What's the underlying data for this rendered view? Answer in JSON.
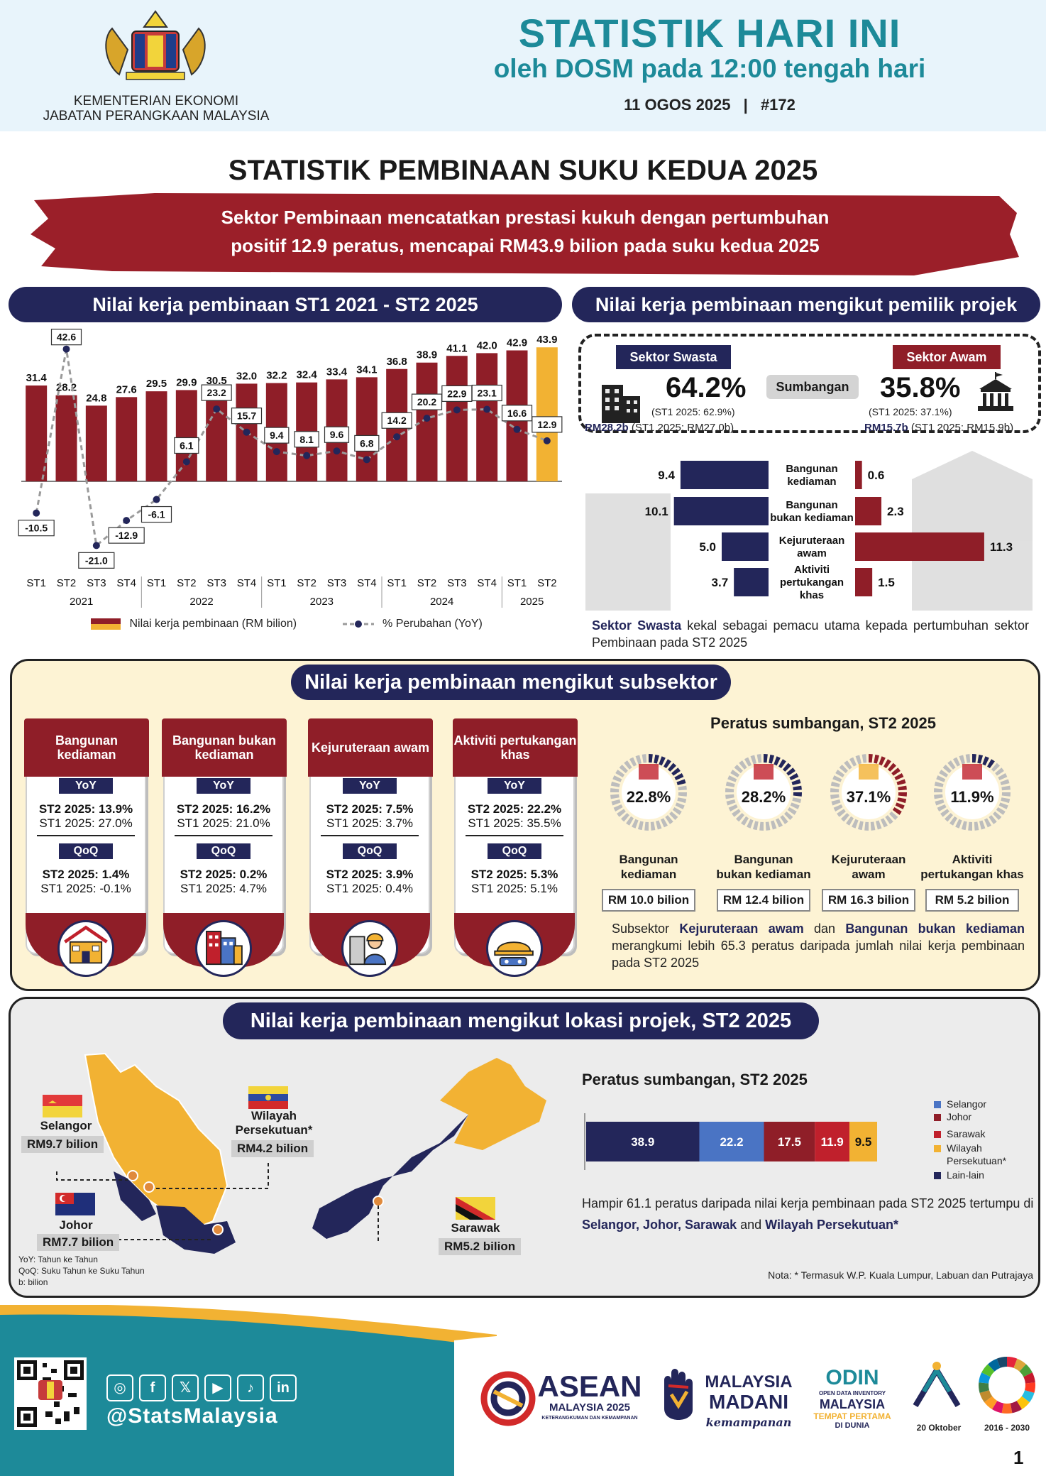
{
  "header": {
    "ministry_line1": "KEMENTERIAN EKONOMI",
    "ministry_line2": "JABATAN PERANGKAAN MALAYSIA",
    "title": "STATISTIK HARI INI",
    "subtitle": "oleh DOSM pada 12:00 tengah hari",
    "date": "11 OGOS 2025",
    "issue": "#172",
    "separator": "|"
  },
  "main_title": "STATISTIK PEMBINAAN SUKU KEDUA 2025",
  "banner": {
    "line1": "Sektor Pembinaan mencatatkan prestasi kukuh dengan pertumbuhan",
    "line2": "positif 12.9 peratus, mencapai RM43.9 bilion pada suku kedua 2025"
  },
  "section1": {
    "title": "Nilai kerja pembinaan ST1 2021 - ST2 2025"
  },
  "section2": {
    "title": "Nilai kerja pembinaan mengikut pemilik projek",
    "swasta": {
      "label": "Sektor Swasta",
      "pct": "64.2%",
      "prev": "(ST1 2025: 62.9%)",
      "rm": "RM28.2b",
      "rm_prev": "(ST1 2025: RM27.0b)"
    },
    "awam": {
      "label": "Sektor Awam",
      "pct": "35.8%",
      "prev": "(ST1 2025: 37.1%)",
      "rm": "RM15.7b",
      "rm_prev": "(ST1 2025: RM15.9b)"
    },
    "sumbangan": "Sumbangan",
    "note_bold": "Sektor Swasta",
    "note_rest": " kekal sebagai pemacu utama kepada pertumbuhan sektor Pembinaan pada ST2 2025"
  },
  "section3": {
    "title": "Nilai kerja pembinaan mengikut subsektor",
    "yoy_label": "YoY",
    "qoq_label": "QoQ",
    "cards": [
      {
        "name": "Bangunan kediaman",
        "yoy_now": "ST2 2025: 13.9%",
        "yoy_prev": "ST1 2025: 27.0%",
        "qoq_now": "ST2 2025: 1.4%",
        "qoq_prev": "ST1 2025: -0.1%",
        "icon": "house-icon"
      },
      {
        "name": "Bangunan bukan kediaman",
        "yoy_now": "ST2 2025: 16.2%",
        "yoy_prev": "ST1 2025: 21.0%",
        "qoq_now": "ST2 2025: 0.2%",
        "qoq_prev": "ST1 2025: 4.7%",
        "icon": "office-building-icon"
      },
      {
        "name": "Kejuruteraan awam",
        "yoy_now": "ST2 2025: 7.5%",
        "yoy_prev": "ST1 2025: 3.7%",
        "qoq_now": "ST2 2025: 3.9%",
        "qoq_prev": "ST1 2025: 0.4%",
        "icon": "engineer-icon"
      },
      {
        "name": "Aktiviti pertukangan khas",
        "yoy_now": "ST2 2025: 22.2%",
        "yoy_prev": "ST1 2025: 35.5%",
        "qoq_now": "ST2 2025: 5.3%",
        "qoq_prev": "ST1 2025: 5.1%",
        "icon": "tools-icon"
      }
    ],
    "donut_title": "Peratus sumbangan, ST2 2025",
    "donuts": [
      {
        "pct": "22.8%",
        "label1": "Bangunan",
        "label2": "kediaman",
        "value": "RM 10.0 bilion"
      },
      {
        "pct": "28.2%",
        "label1": "Bangunan",
        "label2": "bukan kediaman",
        "value": "RM 12.4 bilion"
      },
      {
        "pct": "37.1%",
        "label1": "Kejuruteraan",
        "label2": "awam",
        "value": "RM 16.3 bilion"
      },
      {
        "pct": "11.9%",
        "label1": "Aktiviti",
        "label2": "pertukangan khas",
        "value": "RM 5.2 bilion"
      }
    ],
    "note_p1": "Subsektor ",
    "note_b1": "Kejuruteraan awam",
    "note_p2": " dan ",
    "note_b2": "Bangunan bukan kediaman",
    "note_p3": " merangkumi lebih 65.3 peratus daripada jumlah nilai kerja pembinaan pada ST2 2025"
  },
  "section4": {
    "title": "Nilai kerja pembinaan mengikut lokasi projek, ST2 2025",
    "states": {
      "selangor": {
        "name": "Selangor",
        "value": "RM9.7 bilion"
      },
      "wp": {
        "name1": "Wilayah",
        "name2": "Persekutuan*",
        "value": "RM4.2 bilion"
      },
      "johor": {
        "name": "Johor",
        "value": "RM7.7 bilion"
      },
      "sarawak": {
        "name": "Sarawak",
        "value": "RM5.2 bilion"
      }
    },
    "chart_title": "Peratus sumbangan, ST2 2025",
    "note_p1": "Hampir 61.1 peratus daripada nilai kerja pembinaan pada ST2 2025 tertumpu di ",
    "note_b1": "Selangor, Johor, Sarawak",
    "note_p2": " and ",
    "note_b2": "Wilayah Persekutuan*",
    "footnote": "Nota: * Termasuk W.P. Kuala Lumpur, Labuan dan Putrajaya",
    "abbr1": "YoY: Tahun ke Tahun",
    "abbr2": "QoQ: Suku Tahun ke Suku Tahun",
    "abbr3": "b: bilion"
  },
  "footer": {
    "handle": "@StatsMalaysia",
    "asean1": "ASEAN",
    "asean2": "MALAYSIA 2025",
    "asean3": "KETERANGKUMAN DAN KEMAMPANAN",
    "madani1": "MALAYSIA",
    "madani2": "MADANI",
    "madani3": "kemampanan",
    "odin1": "ODIN",
    "odin2": "OPEN DATA INVENTORY",
    "odin3": "MALAYSIA",
    "odin4": "TEMPAT PERTAMA",
    "odin5": "DI DUNIA",
    "oct": "20 Oktober",
    "sdg": "2016 - 2030",
    "page": "1"
  },
  "colors": {
    "navy": "#23265a",
    "maroon": "#8f1e28",
    "gold": "#f2b233",
    "teal": "#1d8a99",
    "blue": "#4a74c4"
  },
  "chart_data": [
    {
      "type": "bar",
      "title": "Nilai kerja pembinaan ST1 2021 - ST2 2025",
      "categories": [
        "ST1",
        "ST2",
        "ST3",
        "ST4",
        "ST1",
        "ST2",
        "ST3",
        "ST4",
        "ST1",
        "ST2",
        "ST3",
        "ST4",
        "ST1",
        "ST2",
        "ST3",
        "ST4",
        "ST1",
        "ST2"
      ],
      "years": [
        "2021",
        "2022",
        "2023",
        "2024",
        "2025"
      ],
      "series": [
        {
          "name": "Nilai kerja pembinaan (RM bilion)",
          "type": "bar",
          "values": [
            31.4,
            28.2,
            24.8,
            27.6,
            29.5,
            29.9,
            30.5,
            32.0,
            32.2,
            32.4,
            33.4,
            34.1,
            36.8,
            38.9,
            41.1,
            42.0,
            42.9,
            43.9
          ]
        },
        {
          "name": "% Perubahan (YoY)",
          "type": "line",
          "values": [
            -10.5,
            42.6,
            -21.0,
            -12.9,
            -6.1,
            6.1,
            23.2,
            15.7,
            9.4,
            8.1,
            9.6,
            6.8,
            14.2,
            20.2,
            22.9,
            23.1,
            16.6,
            12.9
          ]
        }
      ],
      "legend_position": "bottom"
    },
    {
      "type": "bar",
      "title": "Nilai kerja pembinaan mengikut pemilik projek",
      "categories": [
        "Bangunan kediaman",
        "Bangunan bukan kediaman",
        "Kejuruteraan awam",
        "Aktiviti pertukangan khas"
      ],
      "series": [
        {
          "name": "Sektor Swasta",
          "values": [
            9.4,
            10.1,
            5.0,
            3.7
          ]
        },
        {
          "name": "Sektor Awam",
          "values": [
            0.6,
            2.3,
            11.3,
            1.5
          ]
        }
      ]
    },
    {
      "type": "pie",
      "title": "Peratus sumbangan, ST2 2025",
      "categories": [
        "Bangunan kediaman",
        "Bangunan bukan kediaman",
        "Kejuruteraan awam",
        "Aktiviti pertukangan khas"
      ],
      "values": [
        22.8,
        28.2,
        37.1,
        11.9
      ]
    },
    {
      "type": "bar",
      "title": "Peratus sumbangan, ST2 2025",
      "stacked": true,
      "categories": [
        "Lain-lain",
        "Selangor",
        "Johor",
        "Sarawak",
        "Wilayah Persekutuan*"
      ],
      "values": [
        38.9,
        22.2,
        17.5,
        11.9,
        9.5
      ],
      "colors": [
        "#23265a",
        "#4a74c4",
        "#8f1e28",
        "#c0202c",
        "#f2b233"
      ],
      "legend": [
        "Selangor",
        "Johor",
        "Sarawak",
        "Wilayah Persekutuan*",
        "Lain-lain"
      ],
      "legend_position": "right"
    }
  ]
}
